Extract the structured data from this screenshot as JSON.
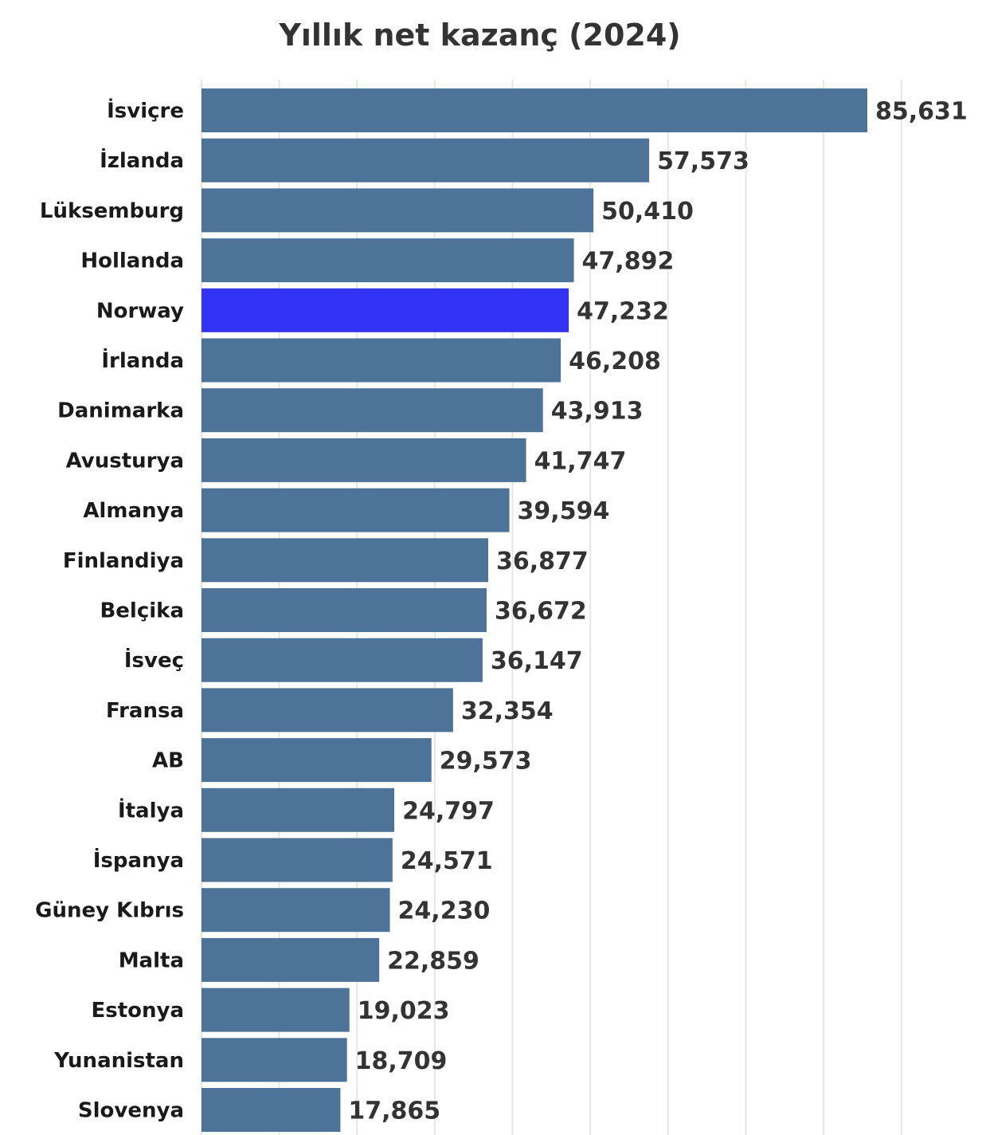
{
  "chart_data": {
    "type": "bar",
    "orientation": "horizontal",
    "title": "Yıllık net kazanç (2024)",
    "xlabel": "",
    "ylabel": "",
    "xlim": [
      0,
      90000
    ],
    "grid": true,
    "categories": [
      "İsviçre",
      "İzlanda",
      "Lüksemburg",
      "Hollanda",
      "Norway",
      "İrlanda",
      "Danimarka",
      "Avusturya",
      "Almanya",
      "Finlandiya",
      "Belçika",
      "İsveç",
      "Fransa",
      "AB",
      "İtalya",
      "İspanya",
      "Güney Kıbrıs",
      "Malta",
      "Estonya",
      "Yunanistan",
      "Slovenya"
    ],
    "values": [
      85631,
      57573,
      50410,
      47892,
      47232,
      46208,
      43913,
      41747,
      39594,
      36877,
      36672,
      36147,
      32354,
      29573,
      24797,
      24571,
      24230,
      22859,
      19023,
      18709,
      17865
    ],
    "value_labels": [
      "85,631",
      "57,573",
      "50,410",
      "47,892",
      "47,232",
      "46,208",
      "43,913",
      "41,747",
      "39,594",
      "36,877",
      "36,672",
      "36,147",
      "32,354",
      "29,573",
      "24,797",
      "24,571",
      "24,230",
      "22,859",
      "19,023",
      "18,709",
      "17,865"
    ],
    "highlight": "Norway",
    "colors": {
      "bar": "#4e7398",
      "highlight": "#3333f5",
      "grid": "#e6e6e6"
    }
  }
}
